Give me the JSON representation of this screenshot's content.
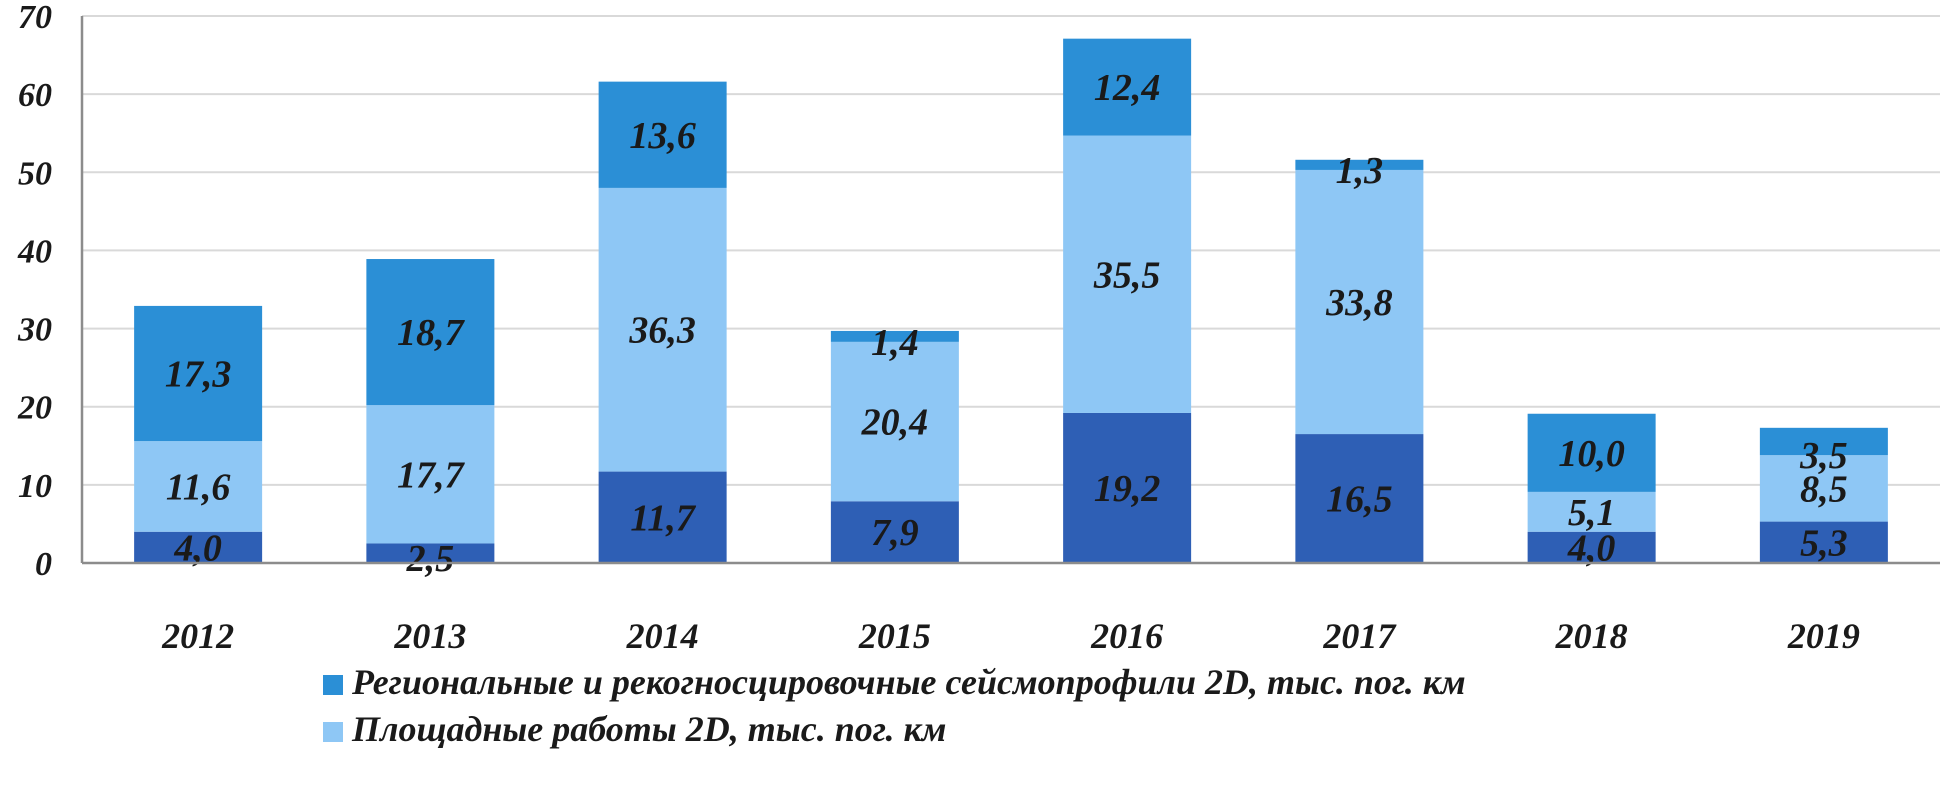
{
  "chart_data": {
    "type": "bar",
    "stacked": true,
    "categories": [
      "2012",
      "2013",
      "2014",
      "2015",
      "2016",
      "2017",
      "2018",
      "2019"
    ],
    "series": [
      {
        "name": "",
        "color": "#2e5fb5",
        "values": [
          4.0,
          2.5,
          11.7,
          7.9,
          19.2,
          16.5,
          4.0,
          5.3
        ],
        "labels": [
          "4,0",
          "2,5",
          "11,7",
          "7,9",
          "19,2",
          "16,5",
          "4,0",
          "5,3"
        ]
      },
      {
        "name": "Площадные работы 2D, тыс. пог. км",
        "color": "#8ec7f5",
        "values": [
          11.6,
          17.7,
          36.3,
          20.4,
          35.5,
          33.8,
          5.1,
          8.5
        ],
        "labels": [
          "11,6",
          "17,7",
          "36,3",
          "20,4",
          "35,5",
          "33,8",
          "5,1",
          "8,5"
        ]
      },
      {
        "name": "Региональные и рекогносцировочные сейсмопрофили 2D, тыс. пог. км",
        "color": "#2b8fd6",
        "values": [
          17.3,
          18.7,
          13.6,
          1.4,
          12.4,
          1.3,
          10.0,
          3.5
        ],
        "labels": [
          "17,3",
          "18,7",
          "13,6",
          "1,4",
          "12,4",
          "1,3",
          "10,0",
          "3,5"
        ]
      }
    ],
    "yticks": [
      "0",
      "10",
      "20",
      "30",
      "40",
      "50",
      "60",
      "70"
    ],
    "ylim": [
      0,
      70
    ],
    "grid": true,
    "legend": [
      {
        "label": "Региональные и рекогносцировочные сейсмопрофили 2D, тыс. пог. км",
        "color": "#2b8fd6"
      },
      {
        "label": "Площадные работы 2D, тыс. пог. км",
        "color": "#8ec7f5"
      }
    ],
    "legend_position": "bottom",
    "title": "",
    "xlabel": "",
    "ylabel": ""
  }
}
